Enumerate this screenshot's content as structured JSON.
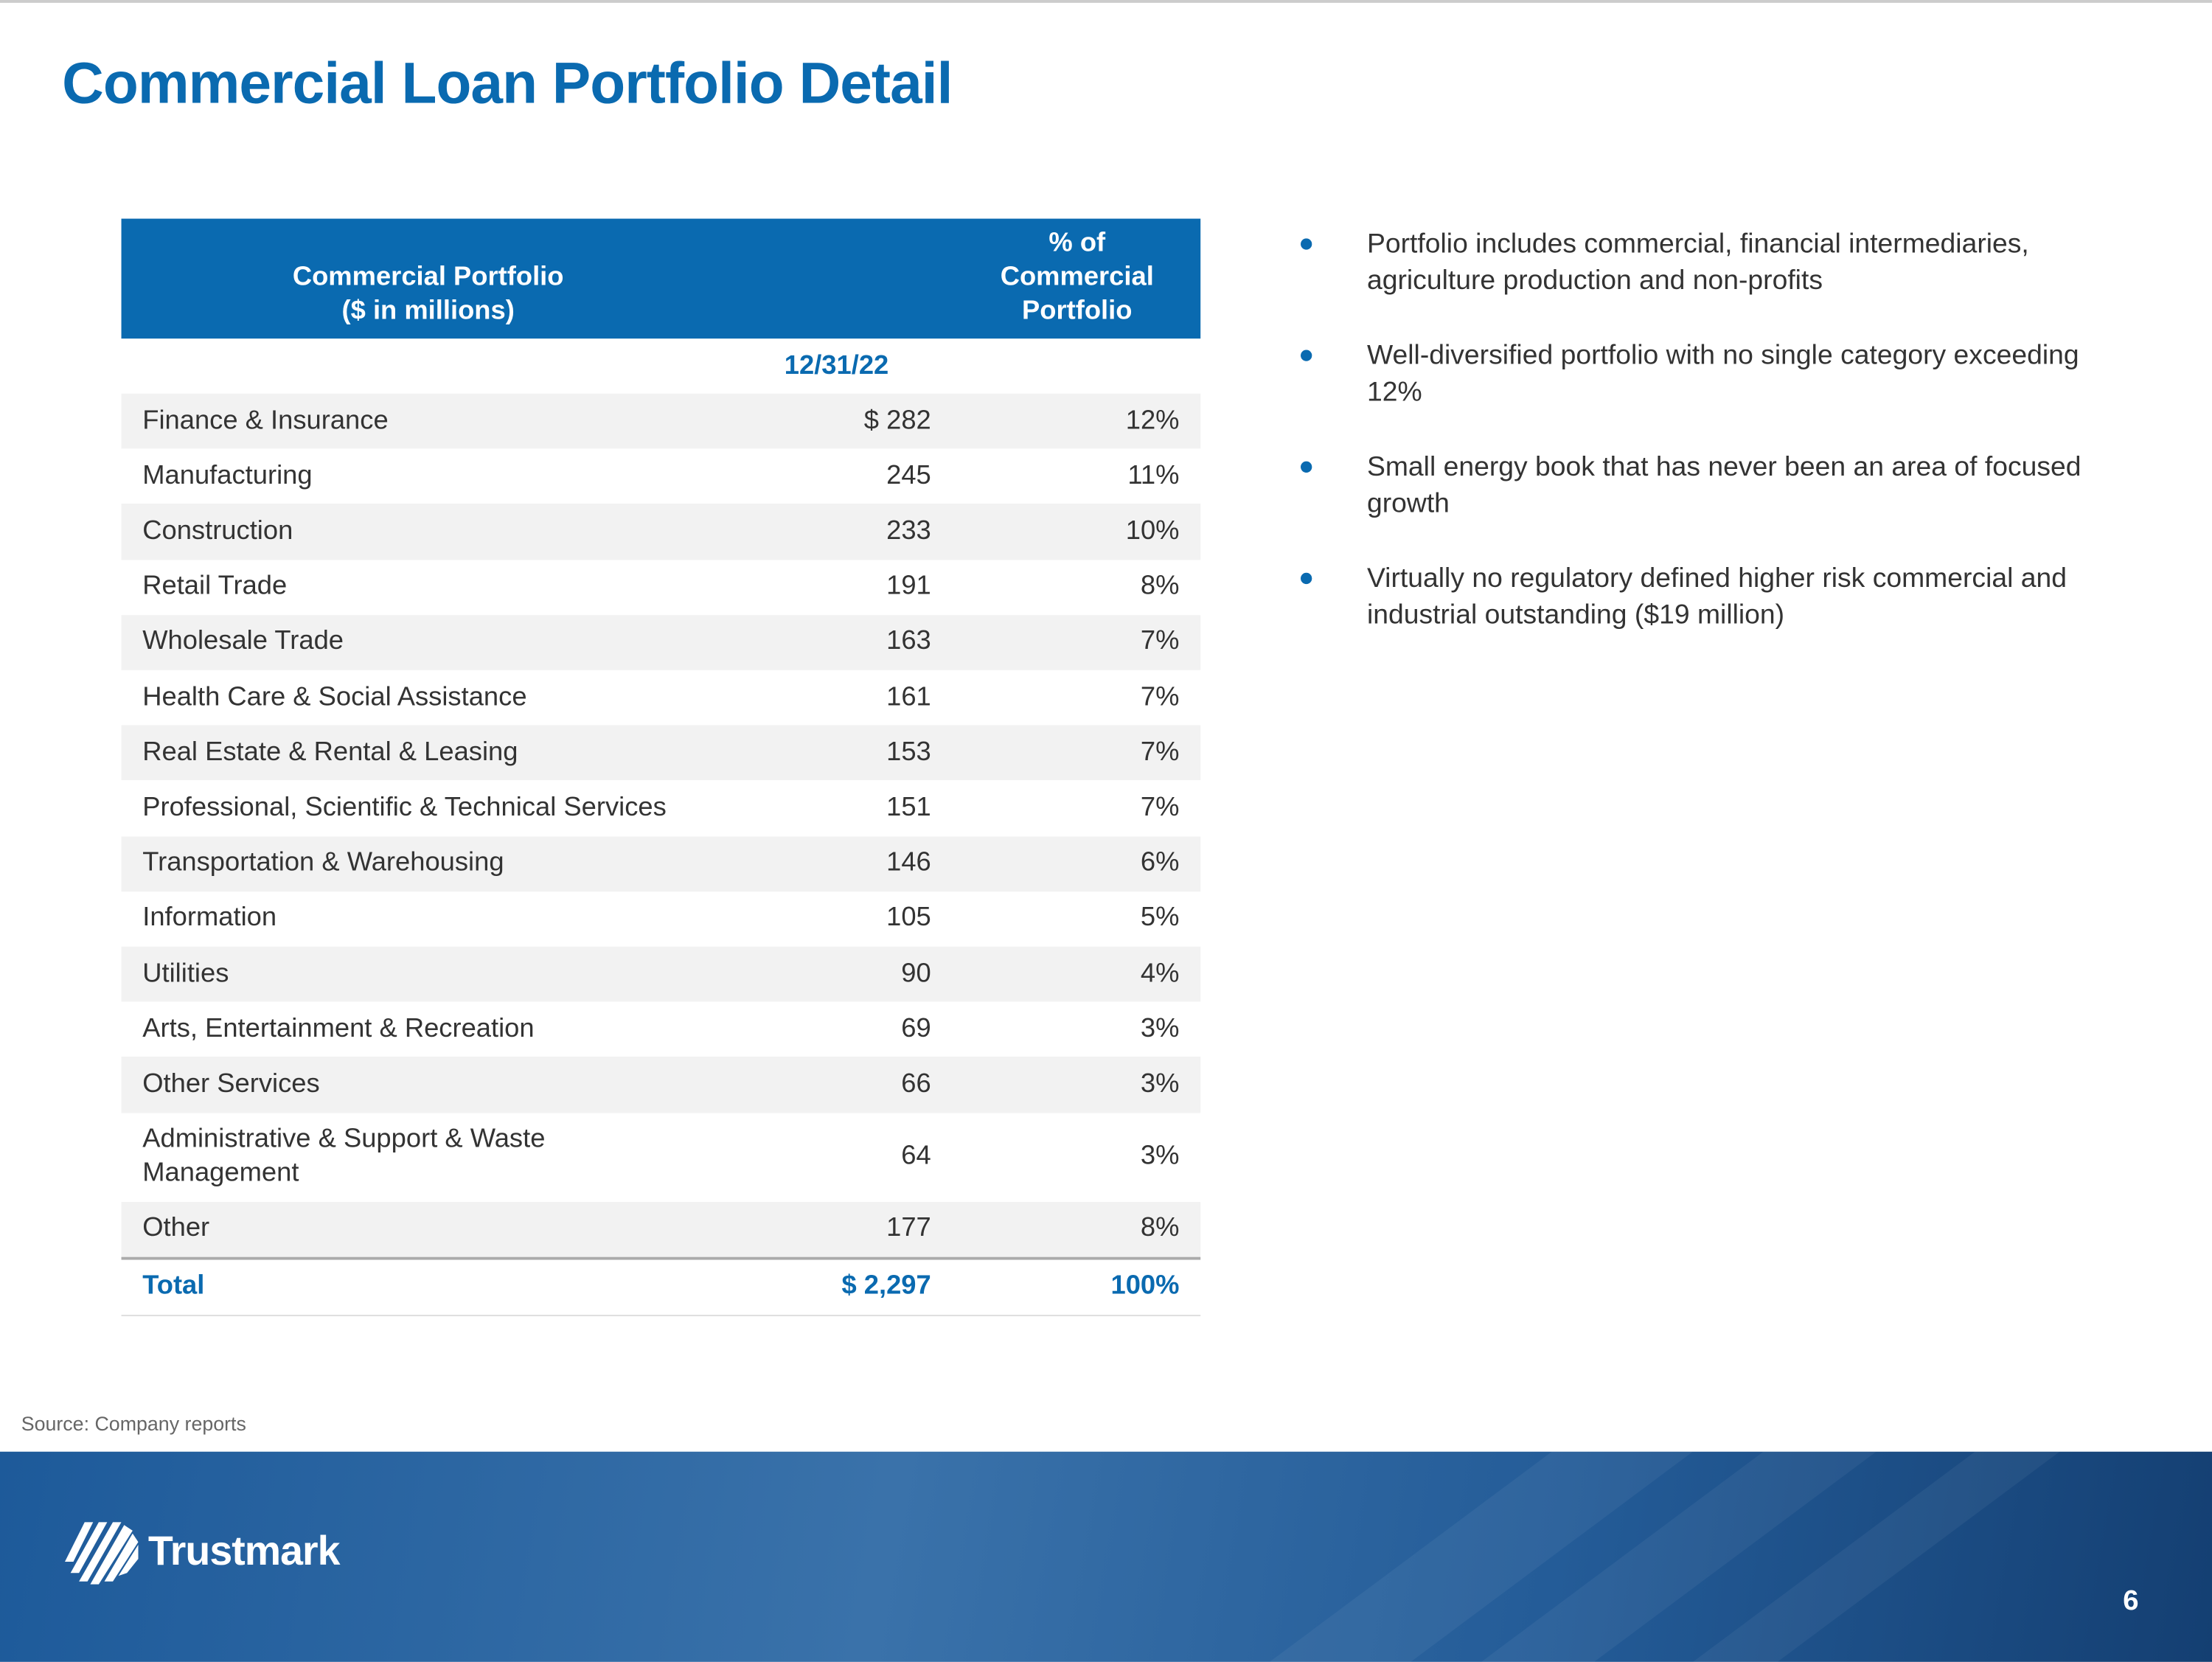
{
  "header": {
    "title": "Commercial Loan Portfolio Detail"
  },
  "table": {
    "header": [
      "Commercial Portfolio\n($ in millions)",
      "% of\nCommercial\nPortfolio"
    ],
    "date": "12/31/22",
    "rows": [
      [
        "Finance & Insurance",
        "$ 282",
        "12%"
      ],
      [
        "Manufacturing",
        "245",
        "11%"
      ],
      [
        "Construction",
        "233",
        "10%"
      ],
      [
        "Retail Trade",
        "191",
        "8%"
      ],
      [
        "Wholesale Trade",
        "163",
        "7%"
      ],
      [
        "Health Care & Social Assistance",
        "161",
        "7%"
      ],
      [
        "Real Estate & Rental & Leasing",
        "153",
        "7%"
      ],
      [
        "Professional, Scientific & Technical Services",
        "151",
        "7%"
      ],
      [
        "Transportation & Warehousing",
        "146",
        "6%"
      ],
      [
        "Information",
        "105",
        "5%"
      ],
      [
        "Utilities",
        "90",
        "4%"
      ],
      [
        "Arts, Entertainment & Recreation",
        "69",
        "3%"
      ],
      [
        "Other Services",
        "66",
        "3%"
      ],
      [
        "Administrative & Support & Waste\nManagement",
        "64",
        "3%"
      ],
      [
        "Other",
        "177",
        "8%"
      ]
    ],
    "total": [
      "Total",
      "$ 2,297",
      "100%"
    ]
  },
  "bullets": [
    "Portfolio includes commercial, financial intermediaries, agriculture production and non-profits",
    "Well-diversified portfolio with no single category exceeding 12%",
    "Small energy book that has never been an area of focused growth",
    "Virtually no regulatory defined higher risk commercial and industrial outstanding ($19 million)"
  ],
  "source": "Source: Company reports",
  "footer": {
    "logo": "Trustmark",
    "page": "6"
  }
}
